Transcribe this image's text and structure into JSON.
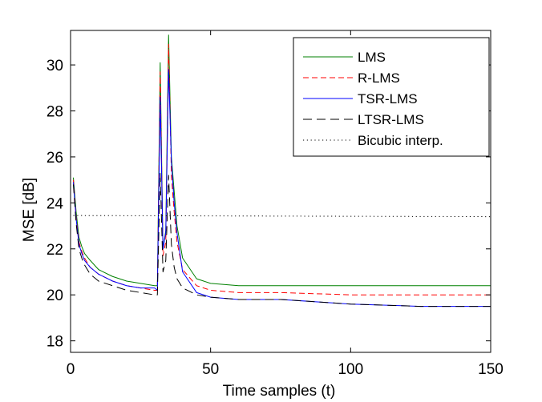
{
  "chart_data": {
    "type": "line",
    "title": "",
    "xlabel": "Time samples (t)",
    "ylabel": "MSE [dB]",
    "xlim": [
      0,
      150
    ],
    "ylim": [
      17.5,
      31.5
    ],
    "x_ticks": [
      "0",
      "50",
      "100",
      "150"
    ],
    "y_ticks": [
      "18",
      "20",
      "22",
      "24",
      "26",
      "28",
      "30"
    ],
    "x_tick_values": [
      0,
      50,
      100,
      150
    ],
    "y_tick_values": [
      18,
      20,
      22,
      24,
      26,
      28,
      30
    ],
    "grid": false,
    "legend_position": "top-right",
    "x": [
      1,
      2,
      3,
      4,
      5,
      7,
      10,
      15,
      20,
      25,
      30,
      31,
      32,
      33,
      34,
      35,
      36,
      37,
      38,
      40,
      45,
      50,
      60,
      75,
      100,
      125,
      150
    ],
    "series": [
      {
        "name": "LMS",
        "color": "#008000",
        "dash": "solid",
        "values": [
          25.1,
          23.6,
          22.5,
          22.1,
          21.8,
          21.5,
          21.1,
          20.8,
          20.6,
          20.5,
          20.4,
          20.4,
          30.1,
          22.0,
          22.8,
          31.3,
          26.0,
          24.5,
          23.0,
          21.6,
          20.7,
          20.5,
          20.4,
          20.4,
          20.4,
          20.4,
          20.4
        ]
      },
      {
        "name": "R-LMS",
        "color": "#ff0000",
        "dash": "dashed",
        "values": [
          25.0,
          23.4,
          22.3,
          21.9,
          21.6,
          21.2,
          20.9,
          20.6,
          20.4,
          20.3,
          20.2,
          20.2,
          29.7,
          21.7,
          22.3,
          30.9,
          25.2,
          23.6,
          22.3,
          21.1,
          20.4,
          20.2,
          20.1,
          20.1,
          20.0,
          20.0,
          20.0
        ]
      },
      {
        "name": "TSR-LMS",
        "color": "#0000ff",
        "dash": "solid",
        "values": [
          24.9,
          23.3,
          22.2,
          21.8,
          21.5,
          21.2,
          20.9,
          20.6,
          20.4,
          20.3,
          20.3,
          20.2,
          28.6,
          22.0,
          22.7,
          29.8,
          25.8,
          24.0,
          22.7,
          21.0,
          20.1,
          19.9,
          19.8,
          19.8,
          19.6,
          19.5,
          19.5
        ]
      },
      {
        "name": "LTSR-LMS",
        "color": "#000000",
        "dash": "longdash",
        "values": [
          24.8,
          23.1,
          22.0,
          21.6,
          21.3,
          20.9,
          20.6,
          20.4,
          20.2,
          20.1,
          20.0,
          20.0,
          25.3,
          21.0,
          21.5,
          25.2,
          22.2,
          21.2,
          20.7,
          20.3,
          20.0,
          19.9,
          19.8,
          19.8,
          19.6,
          19.5,
          19.5
        ]
      },
      {
        "name": "Bicubic interp.",
        "color": "#000000",
        "dash": "dotted",
        "x": [
          1,
          150
        ],
        "values": [
          23.45,
          23.4
        ]
      }
    ]
  }
}
